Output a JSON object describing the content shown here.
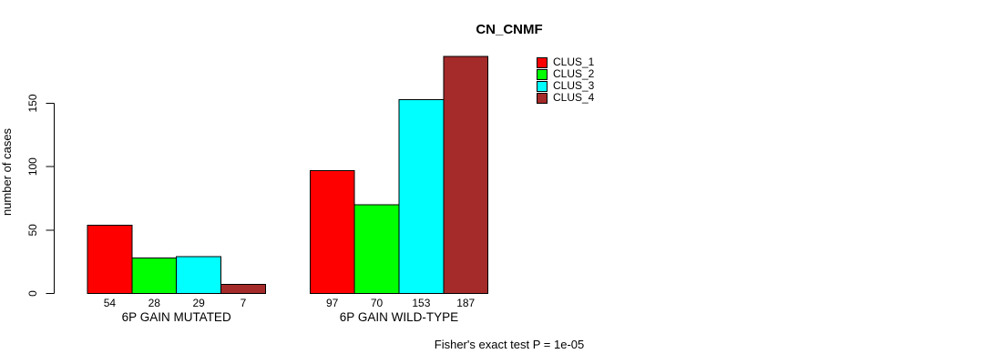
{
  "figure": {
    "title": "CN_CNMF",
    "caption": "Fisher's exact test P = 1e-05"
  },
  "chart_data": {
    "type": "bar",
    "title": "CN_CNMF",
    "xlabel": "",
    "ylabel": "number of cases",
    "categories": [
      "6P GAIN MUTATED",
      "6P GAIN WILD-TYPE"
    ],
    "series": [
      {
        "name": "CLUS_1",
        "color": "#ff0000",
        "values": [
          54,
          97
        ]
      },
      {
        "name": "CLUS_2",
        "color": "#00ff00",
        "values": [
          28,
          70
        ]
      },
      {
        "name": "CLUS_3",
        "color": "#00ffff",
        "values": [
          29,
          153
        ]
      },
      {
        "name": "CLUS_4",
        "color": "#a52a2a",
        "values": [
          7,
          187
        ]
      }
    ],
    "y_ticks": [
      0,
      50,
      100,
      150
    ],
    "ylim": [
      0,
      187
    ],
    "grid": false,
    "show_value_labels": true,
    "legend_position": "top-right",
    "annotation": "Fisher's exact test P = 1e-05"
  }
}
